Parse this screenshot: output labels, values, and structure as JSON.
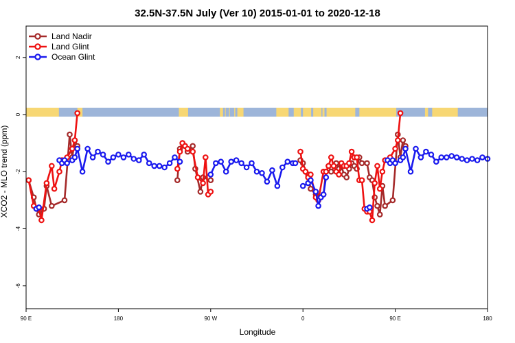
{
  "chart_data": {
    "type": "line",
    "title": "32.5N-37.5N July (Ver 10)   2015-01-01 to 2020-12-18",
    "xlabel": "Longitude",
    "ylabel": "XCO2 - MLO trend (ppm)",
    "x_axis": {
      "ticks": [
        {
          "value": 90,
          "label": "90 E"
        },
        {
          "value": 180,
          "label": "180"
        },
        {
          "value": 270,
          "label": "90 W"
        },
        {
          "value": 360,
          "label": "0"
        },
        {
          "value": 450,
          "label": "90 E"
        },
        {
          "value": 540,
          "label": "180"
        }
      ],
      "xlim": [
        90,
        540
      ]
    },
    "y_axis": {
      "ticks": [
        {
          "value": 2,
          "label": "2"
        },
        {
          "value": 0,
          "label": "0"
        },
        {
          "value": -2,
          "label": "-2"
        },
        {
          "value": -4,
          "label": "-4"
        },
        {
          "value": -6,
          "label": "-6"
        }
      ],
      "ylim": [
        -6.8,
        3.1
      ]
    },
    "legend": {
      "position": "top-left"
    },
    "land_mask": {
      "y": 0,
      "land_color": "#f7d774",
      "ocean_color": "#9db5d9",
      "land_ranges": [
        [
          90,
          122
        ],
        [
          140,
          145
        ],
        [
          239,
          248
        ],
        [
          279,
          282
        ],
        [
          284,
          284
        ],
        [
          288,
          288
        ],
        [
          293,
          294
        ],
        [
          296,
          302
        ],
        [
          334,
          346
        ],
        [
          351,
          358
        ],
        [
          360,
          368
        ],
        [
          370,
          378
        ],
        [
          379,
          381
        ],
        [
          383,
          411
        ],
        [
          415,
          451
        ],
        [
          479,
          482
        ],
        [
          486,
          511
        ]
      ]
    },
    "series": [
      {
        "name": "Land Nadir",
        "color": "#a52a2a",
        "segments": [
          [
            [
              92.5,
              -2.3
            ],
            [
              97.5,
              -2.9
            ],
            [
              100,
              -3.3
            ],
            [
              102.5,
              -3.5
            ],
            [
              107.5,
              -3.3
            ],
            [
              110,
              -2.5
            ],
            [
              115,
              -3.2
            ],
            [
              127.5,
              -3.0
            ],
            [
              132.5,
              -0.7
            ],
            [
              135,
              -1.5
            ],
            [
              137.5,
              -0.9
            ],
            [
              140,
              -1.1
            ]
          ],
          [
            [
              237.5,
              -2.3
            ],
            [
              240,
              -1.2
            ],
            [
              242.5,
              -1.0
            ],
            [
              245,
              -1.1
            ],
            [
              247.5,
              -1.3
            ],
            [
              252.5,
              -1.1
            ],
            [
              255,
              -1.9
            ],
            [
              260,
              -2.7
            ],
            [
              262.5,
              -2.2
            ],
            [
              267.5,
              -2.2
            ],
            [
              270,
              -2.3
            ]
          ],
          [
            [
              357.5,
              -1.6
            ],
            [
              360,
              -1.7
            ],
            [
              362.5,
              -2.0
            ],
            [
              365,
              -2.1
            ],
            [
              367.5,
              -2.6
            ],
            [
              372.5,
              -2.8
            ],
            [
              375,
              -3.0
            ],
            [
              380,
              -2.8
            ],
            [
              382.5,
              -2.0
            ],
            [
              385,
              -1.8
            ],
            [
              387.5,
              -2.0
            ],
            [
              392.5,
              -1.7
            ],
            [
              395,
              -1.9
            ],
            [
              397.5,
              -1.8
            ],
            [
              400,
              -2.1
            ],
            [
              402.5,
              -2.2
            ],
            [
              405,
              -1.9
            ],
            [
              407.5,
              -1.7
            ],
            [
              410,
              -1.8
            ],
            [
              412.5,
              -1.9
            ],
            [
              415,
              -1.5
            ],
            [
              417.5,
              -1.7
            ],
            [
              422.5,
              -1.7
            ],
            [
              425,
              -2.2
            ],
            [
              427.5,
              -2.3
            ],
            [
              430,
              -2.9
            ],
            [
              432.5,
              -3.2
            ],
            [
              435,
              -3.5
            ],
            [
              437.5,
              -2.5
            ],
            [
              440,
              -3.2
            ],
            [
              447.5,
              -3.0
            ],
            [
              452.5,
              -0.7
            ],
            [
              455,
              -1.5
            ],
            [
              457.5,
              -0.9
            ],
            [
              460,
              -1.1
            ]
          ]
        ]
      },
      {
        "name": "Land Glint",
        "color": "#ee1111",
        "segments": [
          [
            [
              92.5,
              -2.3
            ],
            [
              97.5,
              -3.2
            ],
            [
              102.5,
              -3.3
            ],
            [
              105,
              -3.7
            ],
            [
              110,
              -2.4
            ],
            [
              115,
              -1.8
            ],
            [
              117.5,
              -2.6
            ],
            [
              122.5,
              -2.0
            ],
            [
              125,
              -1.6
            ],
            [
              130,
              -1.5
            ],
            [
              135,
              -1.2
            ],
            [
              137.5,
              -0.9
            ],
            [
              140,
              0.05
            ]
          ],
          [
            [
              237.5,
              -1.9
            ],
            [
              240,
              -1.3
            ],
            [
              242.5,
              -1.0
            ],
            [
              245,
              -1.1
            ],
            [
              247.5,
              -1.2
            ],
            [
              252.5,
              -1.3
            ],
            [
              257.5,
              -2.2
            ],
            [
              262.5,
              -2.4
            ],
            [
              265,
              -1.5
            ],
            [
              267.5,
              -2.8
            ],
            [
              270,
              -2.7
            ]
          ],
          [
            [
              357.5,
              -1.3
            ],
            [
              360,
              -1.9
            ],
            [
              362.5,
              -2.0
            ],
            [
              365,
              -2.2
            ],
            [
              367.5,
              -2.1
            ],
            [
              372.5,
              -2.9
            ],
            [
              375,
              -3.0
            ],
            [
              380,
              -2.0
            ],
            [
              382.5,
              -2.0
            ],
            [
              385,
              -1.8
            ],
            [
              387.5,
              -1.5
            ],
            [
              390,
              -1.8
            ],
            [
              392.5,
              -2.0
            ],
            [
              395,
              -2.1
            ],
            [
              397.5,
              -1.7
            ],
            [
              400,
              -1.8
            ],
            [
              402.5,
              -1.8
            ],
            [
              405,
              -1.7
            ],
            [
              407.5,
              -1.3
            ],
            [
              410,
              -1.5
            ],
            [
              412.5,
              -1.5
            ],
            [
              415,
              -2.3
            ],
            [
              417.5,
              -2.3
            ],
            [
              420,
              -3.3
            ],
            [
              422.5,
              -3.4
            ],
            [
              425,
              -3.4
            ],
            [
              427.5,
              -3.7
            ],
            [
              430,
              -2.4
            ],
            [
              432.5,
              -1.8
            ],
            [
              435,
              -2.6
            ],
            [
              437.5,
              -2.0
            ],
            [
              440,
              -1.6
            ],
            [
              445,
              -1.5
            ],
            [
              450,
              -1.2
            ],
            [
              452.5,
              -0.9
            ],
            [
              455,
              0.05
            ]
          ]
        ]
      },
      {
        "name": "Ocean Glint",
        "color": "#1a1aee",
        "segments": [
          [
            [
              100,
              -3.3
            ],
            [
              102.5,
              -3.25
            ]
          ],
          [
            [
              122.5,
              -1.6
            ],
            [
              125,
              -1.7
            ],
            [
              127.5,
              -1.6
            ],
            [
              130,
              -1.7
            ],
            [
              135,
              -1.6
            ],
            [
              137.5,
              -1.5
            ],
            [
              140,
              -1.2
            ],
            [
              145,
              -2.0
            ],
            [
              150,
              -1.2
            ],
            [
              155,
              -1.5
            ],
            [
              160,
              -1.3
            ],
            [
              165,
              -1.4
            ],
            [
              170,
              -1.65
            ],
            [
              175,
              -1.5
            ],
            [
              180,
              -1.4
            ],
            [
              185,
              -1.5
            ],
            [
              190,
              -1.4
            ],
            [
              195,
              -1.55
            ],
            [
              200,
              -1.6
            ],
            [
              205,
              -1.4
            ],
            [
              210,
              -1.7
            ],
            [
              215,
              -1.8
            ],
            [
              220,
              -1.8
            ],
            [
              225,
              -1.85
            ],
            [
              230,
              -1.7
            ],
            [
              235,
              -1.5
            ],
            [
              240,
              -1.65
            ]
          ],
          [
            [
              270,
              -2.1
            ],
            [
              275,
              -1.7
            ],
            [
              280,
              -1.65
            ],
            [
              285,
              -2.0
            ],
            [
              290,
              -1.65
            ],
            [
              295,
              -1.6
            ],
            [
              300,
              -1.7
            ],
            [
              305,
              -1.85
            ],
            [
              310,
              -1.7
            ],
            [
              315,
              -2.0
            ],
            [
              320,
              -2.05
            ],
            [
              325,
              -2.35
            ],
            [
              330,
              -1.95
            ],
            [
              335,
              -2.5
            ],
            [
              340,
              -1.85
            ],
            [
              345,
              -1.65
            ],
            [
              350,
              -1.7
            ],
            [
              352.5,
              -1.7
            ]
          ],
          [
            [
              360,
              -2.5
            ],
            [
              365,
              -2.4
            ],
            [
              367.5,
              -2.3
            ],
            [
              372.5,
              -2.7
            ],
            [
              375,
              -3.2
            ],
            [
              377.5,
              -2.9
            ],
            [
              380,
              -2.8
            ],
            [
              382.5,
              -2.2
            ]
          ],
          [
            [
              422.5,
              -3.3
            ],
            [
              425,
              -3.25
            ]
          ],
          [
            [
              442.5,
              -1.6
            ],
            [
              445,
              -1.7
            ],
            [
              447.5,
              -1.6
            ],
            [
              450,
              -1.7
            ],
            [
              455,
              -1.6
            ],
            [
              457.5,
              -1.5
            ],
            [
              460,
              -1.2
            ],
            [
              465,
              -2.0
            ],
            [
              470,
              -1.2
            ],
            [
              475,
              -1.5
            ],
            [
              480,
              -1.3
            ],
            [
              485,
              -1.4
            ],
            [
              490,
              -1.65
            ],
            [
              495,
              -1.5
            ],
            [
              500,
              -1.5
            ],
            [
              505,
              -1.45
            ],
            [
              510,
              -1.5
            ],
            [
              515,
              -1.55
            ],
            [
              520,
              -1.6
            ],
            [
              525,
              -1.55
            ],
            [
              530,
              -1.6
            ],
            [
              535,
              -1.5
            ],
            [
              540,
              -1.55
            ]
          ]
        ]
      }
    ]
  }
}
